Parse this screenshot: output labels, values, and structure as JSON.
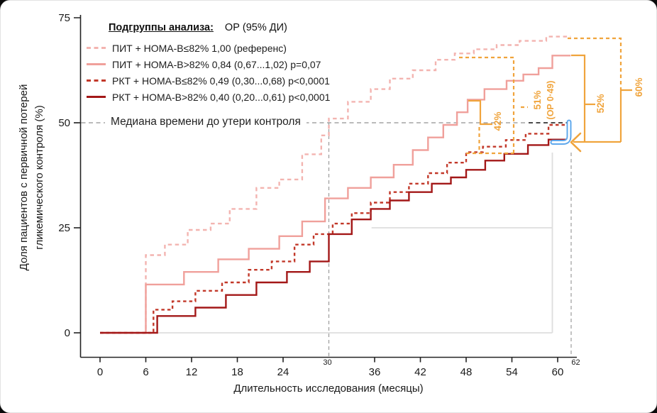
{
  "page": {
    "background": "#0a0a0a",
    "card_background": "#ffffff"
  },
  "legend": {
    "header_label": "Подгруппы анализа:",
    "header_value": "ОР (95% ДИ)",
    "items": [
      {
        "label": "ПИТ + HOMA-B≤82% 1,00 (референс)",
        "color": "#f3b4b0",
        "dash": "dashed"
      },
      {
        "label": "ПИТ + HOMA-B>82% 0,84 (0,67...1,02) p=0,07",
        "color": "#f0a09b",
        "dash": "solid"
      },
      {
        "label": "РКТ + HOMA-B≤82% 0,49 (0,30...0,68) p<0,0001",
        "color": "#c23829",
        "dash": "dashed"
      },
      {
        "label": "РКТ + HOMA-B>82% 0,40 (0,20...0,61) p<0,0001",
        "color": "#a31818",
        "dash": "solid"
      }
    ]
  },
  "median_line_label": "Медиана времени до утери контроля",
  "chart_data": {
    "type": "line",
    "subtype": "kaplan-meier-step",
    "x_label": "Длительность исследования (месяцы)",
    "y_label": "Доля пациентов с первичной потерей гликемического контроля (%)",
    "y_label_lines": [
      "Доля пациентов с первичной потерей",
      "гликемического контроля (%)"
    ],
    "xlim": [
      0,
      62
    ],
    "ylim": [
      0,
      75
    ],
    "x_ticks": [
      0,
      6,
      12,
      18,
      24,
      36,
      42,
      48,
      54,
      60
    ],
    "x_minor_ticks": [
      30,
      62
    ],
    "y_ticks": [
      0,
      25,
      50,
      75
    ],
    "x_end": 61.7,
    "grid": false,
    "series": [
      {
        "name": "ПИТ + HOMA-B≤82%",
        "hr": "1,00 (референс)",
        "color": "#f3b4b0",
        "dash": "dashed",
        "steps": [
          [
            6,
            18.5
          ],
          [
            8.5,
            21
          ],
          [
            11.5,
            24.5
          ],
          [
            14.5,
            26
          ],
          [
            17,
            29.5
          ],
          [
            20.5,
            34.5
          ],
          [
            23.5,
            36.5
          ],
          [
            26.5,
            42.5
          ],
          [
            29,
            47
          ],
          [
            30,
            51
          ],
          [
            32.5,
            55
          ],
          [
            35.5,
            58
          ],
          [
            38,
            60.5
          ],
          [
            41,
            62.5
          ],
          [
            44,
            65
          ],
          [
            46.5,
            66.5
          ],
          [
            49,
            67.5
          ],
          [
            52,
            68.5
          ],
          [
            55,
            69.5
          ],
          [
            58.5,
            70.5
          ]
        ]
      },
      {
        "name": "ПИТ + HOMA-B>82%",
        "hr": "0,84 (0,67...1,02) p=0,07",
        "color": "#f0a09b",
        "dash": "solid",
        "steps": [
          [
            6,
            11.5
          ],
          [
            11,
            14.5
          ],
          [
            15.5,
            17.5
          ],
          [
            19.5,
            20
          ],
          [
            23.5,
            23
          ],
          [
            26.5,
            26.5
          ],
          [
            29.5,
            32
          ],
          [
            32.5,
            34.5
          ],
          [
            35.5,
            37
          ],
          [
            38.5,
            40
          ],
          [
            41,
            43.5
          ],
          [
            43,
            46.5
          ],
          [
            45,
            49.5
          ],
          [
            46.8,
            52.5
          ],
          [
            48.2,
            55.5
          ],
          [
            50.4,
            58
          ],
          [
            53.3,
            60
          ],
          [
            55.5,
            61.5
          ],
          [
            57.5,
            63
          ],
          [
            59.3,
            66
          ]
        ]
      },
      {
        "name": "РКТ + HOMA-B≤82%",
        "hr": "0,49 (0,30...0,68) p<0,0001",
        "color": "#c23829",
        "dash": "dashed",
        "steps": [
          [
            7,
            5.5
          ],
          [
            9.5,
            7.5
          ],
          [
            12.5,
            10
          ],
          [
            16,
            12
          ],
          [
            19.5,
            15
          ],
          [
            22.5,
            17
          ],
          [
            25.5,
            21
          ],
          [
            28,
            23.5
          ],
          [
            30.5,
            26
          ],
          [
            33,
            28.5
          ],
          [
            35.5,
            31
          ],
          [
            38,
            33.5
          ],
          [
            40.5,
            35.5
          ],
          [
            43,
            38
          ],
          [
            45.5,
            40.5
          ],
          [
            48,
            43
          ],
          [
            50.2,
            44.3
          ],
          [
            53.2,
            45.9
          ],
          [
            55.8,
            47.4
          ],
          [
            58.8,
            49.5
          ]
        ]
      },
      {
        "name": "РКТ + HOMA-B>82%",
        "hr": "0,40 (0,20...0,61) p<0,0001",
        "color": "#a31818",
        "dash": "solid",
        "steps": [
          [
            7.5,
            4
          ],
          [
            12.5,
            6
          ],
          [
            16.5,
            9
          ],
          [
            20.5,
            12
          ],
          [
            24.5,
            14.5
          ],
          [
            27.5,
            17
          ],
          [
            30,
            23.5
          ],
          [
            33,
            27
          ],
          [
            35.5,
            29.5
          ],
          [
            38,
            31.5
          ],
          [
            40.5,
            33.5
          ],
          [
            43.5,
            35.5
          ],
          [
            46,
            37
          ],
          [
            48,
            38.8
          ],
          [
            50.5,
            41
          ],
          [
            53,
            42.6
          ],
          [
            56.1,
            44.7
          ],
          [
            58.8,
            46
          ]
        ]
      }
    ],
    "reference_lines": {
      "median_pct": 50,
      "vertical_months": [
        30,
        62
      ],
      "gray_box_pcts": [
        0,
        25
      ],
      "gray_box_month": 59.3
    },
    "annotations": [
      {
        "id": "rrr-42",
        "label": "42%",
        "color": "#f0a43c"
      },
      {
        "id": "rrr-51",
        "label": "51%",
        "sublabel": "(ОР 0·49)",
        "color": "#f0a43c"
      },
      {
        "id": "rrr-52",
        "label": "52%",
        "color": "#f0a43c"
      },
      {
        "id": "rrr-60",
        "label": "60%",
        "color": "#f0a43c"
      }
    ],
    "legend_position": "top-left"
  }
}
